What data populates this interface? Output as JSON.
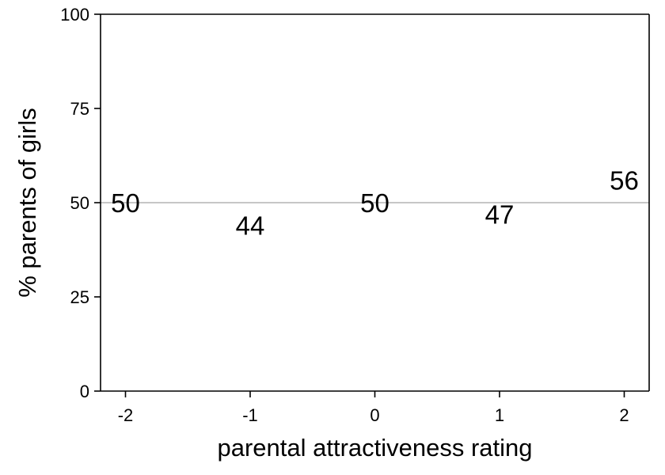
{
  "chart_data": {
    "type": "scatter",
    "title": "",
    "xlabel": "parental attractiveness rating",
    "ylabel": "% parents of girls",
    "x": [
      -2,
      -1,
      0,
      1,
      2
    ],
    "values": [
      50,
      44,
      50,
      47,
      56
    ],
    "point_labels": [
      "50",
      "44",
      "50",
      "47",
      "56"
    ],
    "marker": "value-label",
    "xlim": [
      -2.2,
      2.2
    ],
    "ylim": [
      0,
      100
    ],
    "xticks": [
      -2,
      -1,
      0,
      1,
      2
    ],
    "xtick_labels": [
      "-2",
      "-1",
      "0",
      "1",
      "2"
    ],
    "yticks": [
      0,
      25,
      50,
      75,
      100
    ],
    "ytick_labels": [
      "0",
      "25",
      "50",
      "75",
      "100"
    ],
    "reference_line": {
      "y": 50,
      "color": "#b3b3b3"
    },
    "grid": false,
    "legend": "none",
    "colors": {
      "text": "#000000",
      "axis": "#000000",
      "reference": "#b3b3b3",
      "background": "#ffffff"
    }
  }
}
